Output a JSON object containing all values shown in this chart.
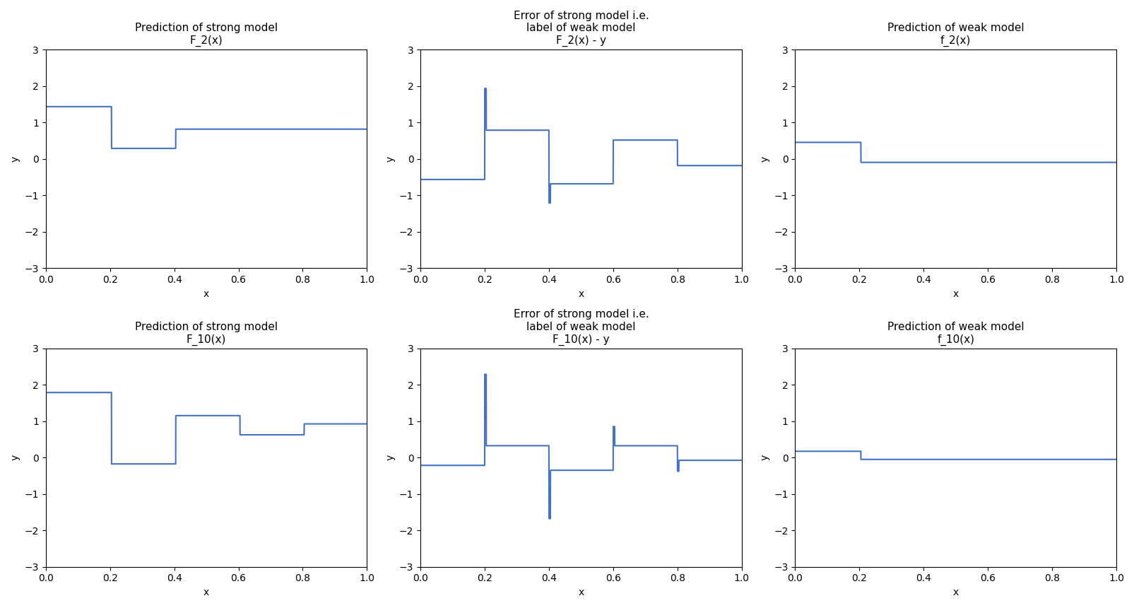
{
  "titles": [
    [
      "Prediction of strong model\nF_2(x)",
      "Error of strong model i.e.\nlabel of weak model\nF_2(x) - y",
      "Prediction of weak model\nf_2(x)"
    ],
    [
      "Prediction of strong model\nF_10(x)",
      "Error of strong model i.e.\nlabel of weak model\nF_10(x) - y",
      "Prediction of weak model\nf_10(x)"
    ]
  ],
  "xlabel": "x",
  "ylabel": "y",
  "ylim": [
    -3,
    3
  ],
  "xlim": [
    0,
    1
  ],
  "line_color": "#4472C4",
  "line_width": 1.5
}
